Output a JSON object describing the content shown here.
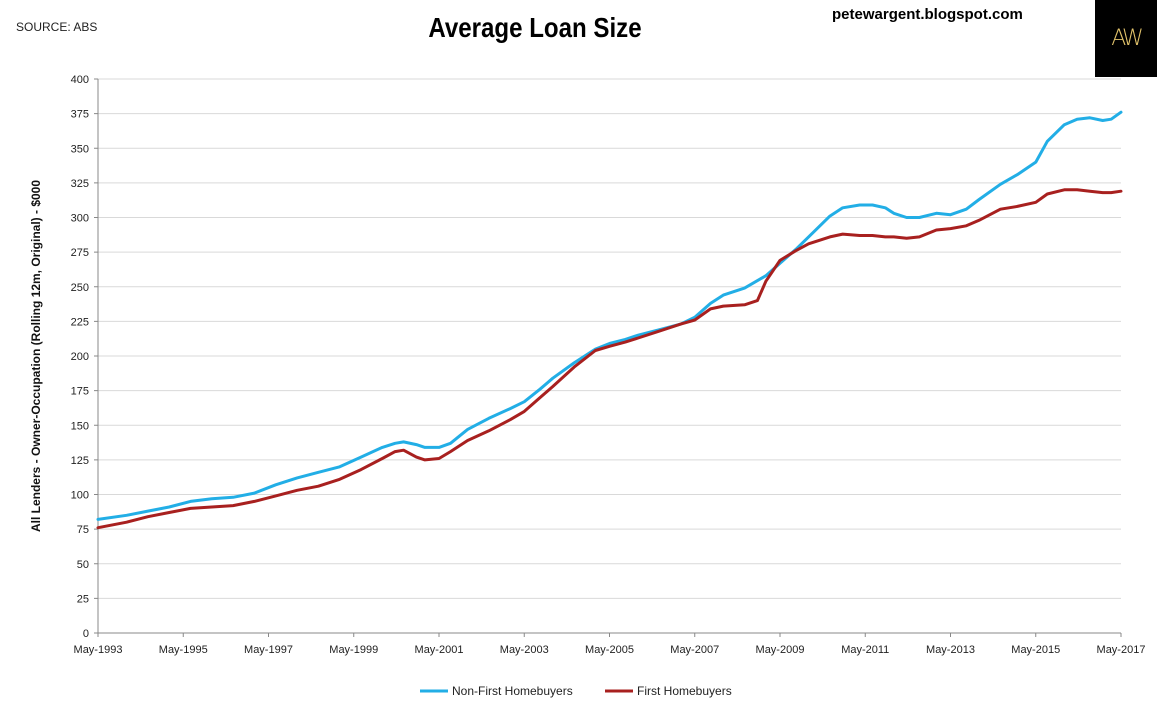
{
  "header": {
    "source": "SOURCE: ABS",
    "title": "Average Loan Size",
    "site": "petewargent.blogspot.com",
    "logo": "AW"
  },
  "chart_data": {
    "type": "line",
    "title": "Average Loan Size",
    "xlabel": "",
    "ylabel": "All Lenders - Owner-Occupation (Rolling 12m, Original) - $000",
    "ylim": [
      0,
      400
    ],
    "yticks": [
      0,
      25,
      50,
      75,
      100,
      125,
      150,
      175,
      200,
      225,
      250,
      275,
      300,
      325,
      350,
      375,
      400
    ],
    "xlim": [
      1993.33,
      2017.33
    ],
    "xtick_labels": [
      "May-1993",
      "May-1995",
      "May-1997",
      "May-1999",
      "May-2001",
      "May-2003",
      "May-2005",
      "May-2007",
      "May-2009",
      "May-2011",
      "May-2013",
      "May-2015",
      "May-2017"
    ],
    "xticks": [
      1993.33,
      1995.33,
      1997.33,
      1999.33,
      2001.33,
      2003.33,
      2005.33,
      2007.33,
      2009.33,
      2011.33,
      2013.33,
      2015.33,
      2017.33
    ],
    "grid": "horizontal",
    "legend_position": "bottom",
    "series": [
      {
        "name": "Non-First Homebuyers",
        "color": "#22aee6",
        "points": [
          [
            1993.33,
            82
          ],
          [
            1994.0,
            85
          ],
          [
            1994.5,
            88
          ],
          [
            1995.0,
            91
          ],
          [
            1995.5,
            95
          ],
          [
            1996.0,
            97
          ],
          [
            1996.5,
            98
          ],
          [
            1997.0,
            101
          ],
          [
            1997.5,
            107
          ],
          [
            1998.0,
            112
          ],
          [
            1998.5,
            116
          ],
          [
            1999.0,
            120
          ],
          [
            1999.5,
            127
          ],
          [
            2000.0,
            134
          ],
          [
            2000.3,
            137
          ],
          [
            2000.5,
            138
          ],
          [
            2000.8,
            136
          ],
          [
            2001.0,
            134
          ],
          [
            2001.33,
            134
          ],
          [
            2001.6,
            137
          ],
          [
            2002.0,
            147
          ],
          [
            2002.5,
            155
          ],
          [
            2003.0,
            162
          ],
          [
            2003.33,
            167
          ],
          [
            2003.7,
            176
          ],
          [
            2004.0,
            184
          ],
          [
            2004.5,
            195
          ],
          [
            2005.0,
            205
          ],
          [
            2005.33,
            209
          ],
          [
            2005.7,
            212
          ],
          [
            2006.0,
            215
          ],
          [
            2006.5,
            219
          ],
          [
            2007.0,
            223
          ],
          [
            2007.33,
            228
          ],
          [
            2007.7,
            238
          ],
          [
            2008.0,
            244
          ],
          [
            2008.5,
            249
          ],
          [
            2009.0,
            258
          ],
          [
            2009.33,
            267
          ],
          [
            2009.7,
            277
          ],
          [
            2010.0,
            286
          ],
          [
            2010.5,
            301
          ],
          [
            2010.8,
            307
          ],
          [
            2011.2,
            309
          ],
          [
            2011.5,
            309
          ],
          [
            2011.8,
            307
          ],
          [
            2012.0,
            303
          ],
          [
            2012.3,
            300
          ],
          [
            2012.6,
            300
          ],
          [
            2013.0,
            303
          ],
          [
            2013.33,
            302
          ],
          [
            2013.7,
            306
          ],
          [
            2014.0,
            313
          ],
          [
            2014.5,
            324
          ],
          [
            2014.9,
            331
          ],
          [
            2015.33,
            340
          ],
          [
            2015.6,
            355
          ],
          [
            2016.0,
            367
          ],
          [
            2016.3,
            371
          ],
          [
            2016.6,
            372
          ],
          [
            2016.9,
            370
          ],
          [
            2017.1,
            371
          ],
          [
            2017.33,
            376
          ]
        ]
      },
      {
        "name": "First Homebuyers",
        "color": "#a8201f",
        "points": [
          [
            1993.33,
            76
          ],
          [
            1994.0,
            80
          ],
          [
            1994.5,
            84
          ],
          [
            1995.0,
            87
          ],
          [
            1995.5,
            90
          ],
          [
            1996.0,
            91
          ],
          [
            1996.5,
            92
          ],
          [
            1997.0,
            95
          ],
          [
            1997.5,
            99
          ],
          [
            1998.0,
            103
          ],
          [
            1998.5,
            106
          ],
          [
            1999.0,
            111
          ],
          [
            1999.5,
            118
          ],
          [
            2000.0,
            126
          ],
          [
            2000.3,
            131
          ],
          [
            2000.5,
            132
          ],
          [
            2000.8,
            127
          ],
          [
            2001.0,
            125
          ],
          [
            2001.33,
            126
          ],
          [
            2001.6,
            131
          ],
          [
            2002.0,
            139
          ],
          [
            2002.5,
            146
          ],
          [
            2003.0,
            154
          ],
          [
            2003.33,
            160
          ],
          [
            2003.7,
            170
          ],
          [
            2004.0,
            178
          ],
          [
            2004.5,
            192
          ],
          [
            2005.0,
            204
          ],
          [
            2005.33,
            207
          ],
          [
            2005.7,
            210
          ],
          [
            2006.0,
            213
          ],
          [
            2006.5,
            218
          ],
          [
            2007.0,
            223
          ],
          [
            2007.33,
            226
          ],
          [
            2007.7,
            234
          ],
          [
            2008.0,
            236
          ],
          [
            2008.5,
            237
          ],
          [
            2008.8,
            240
          ],
          [
            2009.0,
            254
          ],
          [
            2009.33,
            269
          ],
          [
            2009.7,
            276
          ],
          [
            2010.0,
            281
          ],
          [
            2010.5,
            286
          ],
          [
            2010.8,
            288
          ],
          [
            2011.2,
            287
          ],
          [
            2011.5,
            287
          ],
          [
            2011.8,
            286
          ],
          [
            2012.0,
            286
          ],
          [
            2012.3,
            285
          ],
          [
            2012.6,
            286
          ],
          [
            2013.0,
            291
          ],
          [
            2013.33,
            292
          ],
          [
            2013.7,
            294
          ],
          [
            2014.0,
            298
          ],
          [
            2014.5,
            306
          ],
          [
            2014.9,
            308
          ],
          [
            2015.33,
            311
          ],
          [
            2015.6,
            317
          ],
          [
            2016.0,
            320
          ],
          [
            2016.3,
            320
          ],
          [
            2016.6,
            319
          ],
          [
            2016.9,
            318
          ],
          [
            2017.1,
            318
          ],
          [
            2017.33,
            319
          ]
        ]
      }
    ]
  }
}
